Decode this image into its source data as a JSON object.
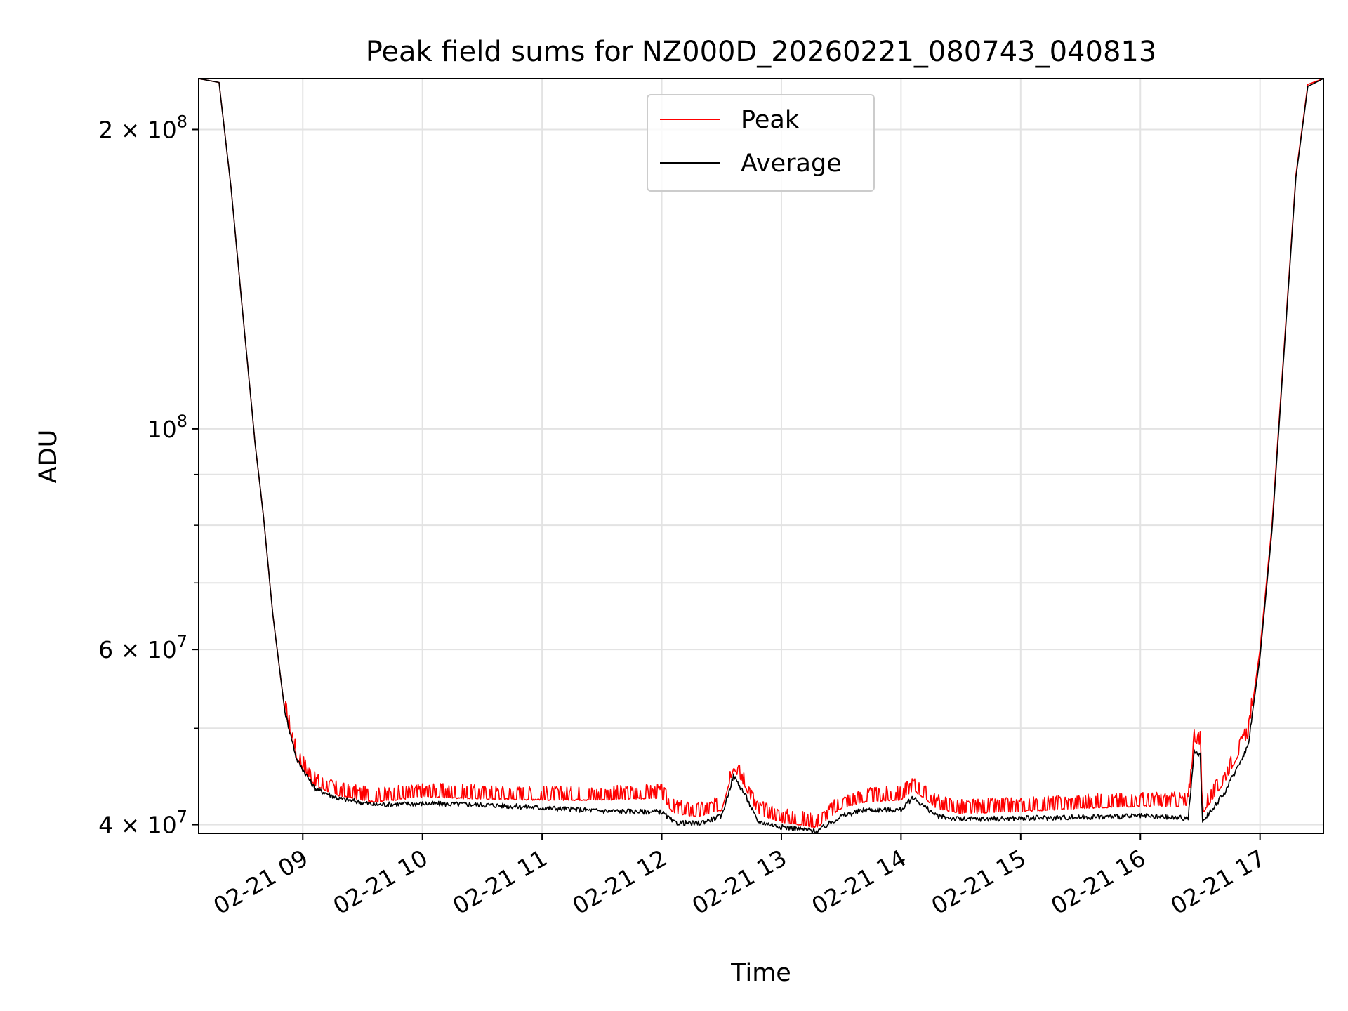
{
  "chart_data": {
    "type": "line",
    "title": "Peak field sums for NZ000D_20260221_080743_040813",
    "xlabel": "Time",
    "ylabel": "ADU",
    "yscale": "log",
    "ylim": [
      39200000,
      225000000
    ],
    "xlim_hours": [
      8.13,
      17.53
    ],
    "grid": true,
    "legend_position": "upper-center",
    "x_ticks": [
      {
        "hour": 9,
        "label": "02-21 09"
      },
      {
        "hour": 10,
        "label": "02-21 10"
      },
      {
        "hour": 11,
        "label": "02-21 11"
      },
      {
        "hour": 12,
        "label": "02-21 12"
      },
      {
        "hour": 13,
        "label": "02-21 13"
      },
      {
        "hour": 14,
        "label": "02-21 14"
      },
      {
        "hour": 15,
        "label": "02-21 15"
      },
      {
        "hour": 16,
        "label": "02-21 16"
      },
      {
        "hour": 17,
        "label": "02-21 17"
      }
    ],
    "y_ticks": [
      {
        "value": 200000000,
        "mant": "2",
        "base": "10",
        "exp": "8"
      },
      {
        "value": 100000000,
        "mant": "",
        "base": "10",
        "exp": "8"
      },
      {
        "value": 60000000,
        "mant": "6",
        "base": "10",
        "exp": "7"
      },
      {
        "value": 40000000,
        "mant": "4",
        "base": "10",
        "exp": "7"
      }
    ],
    "y_minor_ticks": [
      50000000,
      70000000,
      80000000,
      90000000
    ],
    "series": [
      {
        "name": "Peak",
        "color": "#ff0000",
        "points": [
          [
            8.13,
            225000000
          ],
          [
            8.3,
            223000000
          ],
          [
            8.4,
            175000000
          ],
          [
            8.5,
            130000000
          ],
          [
            8.58,
            103000000
          ],
          [
            8.6,
            97000000
          ],
          [
            8.67,
            82000000
          ],
          [
            8.75,
            65000000
          ],
          [
            8.85,
            52000000
          ],
          [
            8.95,
            46500000
          ],
          [
            9.1,
            43700000
          ],
          [
            9.3,
            42700000
          ],
          [
            9.6,
            42100000
          ],
          [
            10.0,
            42600000
          ],
          [
            10.5,
            42400000
          ],
          [
            11.0,
            42300000
          ],
          [
            11.5,
            42300000
          ],
          [
            12.0,
            42500000
          ],
          [
            12.1,
            41000000
          ],
          [
            12.3,
            40700000
          ],
          [
            12.5,
            41300000
          ],
          [
            12.6,
            45500000
          ],
          [
            12.7,
            43500000
          ],
          [
            12.8,
            41000000
          ],
          [
            13.0,
            40200000
          ],
          [
            13.3,
            39700000
          ],
          [
            13.5,
            41500000
          ],
          [
            13.7,
            42100000
          ],
          [
            14.0,
            42300000
          ],
          [
            14.1,
            43300000
          ],
          [
            14.3,
            41500000
          ],
          [
            14.5,
            41000000
          ],
          [
            15.0,
            41200000
          ],
          [
            15.5,
            41500000
          ],
          [
            16.0,
            41700000
          ],
          [
            16.4,
            41700000
          ],
          [
            16.45,
            48500000
          ],
          [
            16.5,
            48000000
          ],
          [
            16.52,
            41000000
          ],
          [
            16.7,
            44000000
          ],
          [
            16.9,
            49000000
          ],
          [
            17.0,
            60000000
          ],
          [
            17.1,
            80000000
          ],
          [
            17.2,
            120000000
          ],
          [
            17.3,
            180000000
          ],
          [
            17.4,
            222000000
          ],
          [
            17.53,
            225000000
          ]
        ]
      },
      {
        "name": "Average",
        "color": "#000000",
        "points": [
          [
            8.13,
            225000000
          ],
          [
            8.3,
            223000000
          ],
          [
            8.4,
            175000000
          ],
          [
            8.5,
            130000000
          ],
          [
            8.58,
            103000000
          ],
          [
            8.6,
            97000000
          ],
          [
            8.67,
            82000000
          ],
          [
            8.75,
            65000000
          ],
          [
            8.85,
            52000000
          ],
          [
            8.95,
            46500000
          ],
          [
            9.1,
            43500000
          ],
          [
            9.3,
            42500000
          ],
          [
            9.6,
            41900000
          ],
          [
            10.0,
            42000000
          ],
          [
            10.5,
            41900000
          ],
          [
            11.0,
            41600000
          ],
          [
            11.5,
            41300000
          ],
          [
            12.0,
            41200000
          ],
          [
            12.1,
            40200000
          ],
          [
            12.3,
            40100000
          ],
          [
            12.5,
            40800000
          ],
          [
            12.6,
            44800000
          ],
          [
            12.7,
            42800000
          ],
          [
            12.8,
            40300000
          ],
          [
            13.0,
            39800000
          ],
          [
            13.3,
            39400000
          ],
          [
            13.5,
            40800000
          ],
          [
            13.7,
            41400000
          ],
          [
            14.0,
            41400000
          ],
          [
            14.1,
            42600000
          ],
          [
            14.3,
            40800000
          ],
          [
            14.5,
            40500000
          ],
          [
            15.0,
            40600000
          ],
          [
            15.5,
            40700000
          ],
          [
            16.0,
            40800000
          ],
          [
            16.4,
            40600000
          ],
          [
            16.45,
            47300000
          ],
          [
            16.5,
            47000000
          ],
          [
            16.52,
            40300000
          ],
          [
            16.7,
            43000000
          ],
          [
            16.9,
            48000000
          ],
          [
            17.0,
            59000000
          ],
          [
            17.1,
            79000000
          ],
          [
            17.2,
            119000000
          ],
          [
            17.3,
            179000000
          ],
          [
            17.4,
            221000000
          ],
          [
            17.53,
            225000000
          ]
        ]
      }
    ]
  }
}
